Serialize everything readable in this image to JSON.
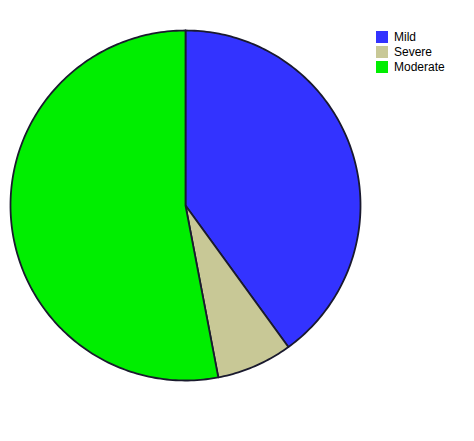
{
  "chart_data": {
    "type": "pie",
    "categories": [
      "Mild",
      "Severe",
      "Moderate"
    ],
    "values": [
      40,
      7,
      53
    ],
    "colors": [
      "#3333FF",
      "#C8C896",
      "#00EE00"
    ],
    "legend": "right"
  }
}
